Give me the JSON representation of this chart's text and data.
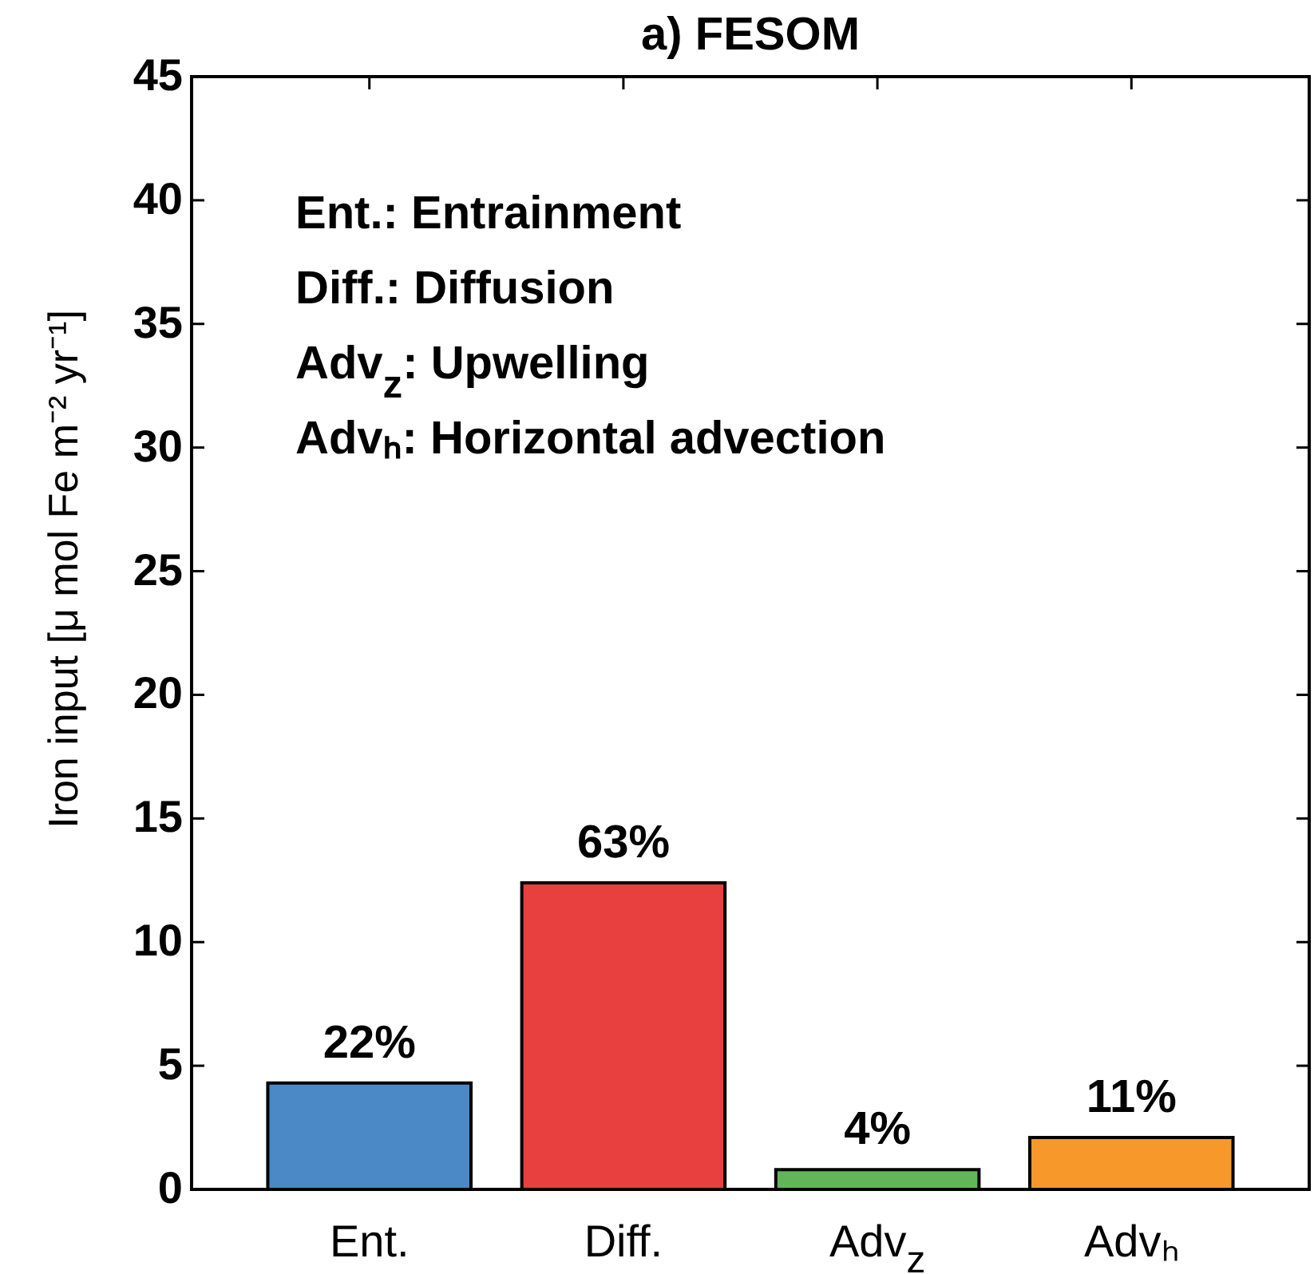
{
  "chart_data": {
    "type": "bar",
    "title": "a) FESOM",
    "ylabel": "Iron input [μ mol Fe m⁻² yr⁻¹]",
    "categories": [
      "Ent.",
      "Diff.",
      "Adv$_{z}$",
      "Advₕ"
    ],
    "values": [
      4.3,
      12.4,
      0.8,
      2.1
    ],
    "colors": [
      "#4a89c5",
      "#e7403f",
      "#63b55a",
      "#f7982a"
    ],
    "ylim": [
      0,
      45
    ],
    "yticks": [
      0,
      5,
      10,
      15,
      20,
      25,
      30,
      35,
      40,
      45
    ],
    "grid": false,
    "annotations": [
      "Ent.: Entrainment",
      "Diff.: Diffusion",
      "Adv$_{z}$: Upwelling",
      "Advₕ: Horizontal advection",
      {
        "text": "22%",
        "x": "Ent.",
        "y": 4.3
      },
      {
        "text": "63%",
        "x": "Diff.",
        "y": 12.4
      },
      {
        "text": "4%",
        "x": "Adv$_{z}$",
        "y": 0.8
      },
      {
        "text": "11%",
        "x": "Advₕ",
        "y": 2.1
      }
    ]
  }
}
